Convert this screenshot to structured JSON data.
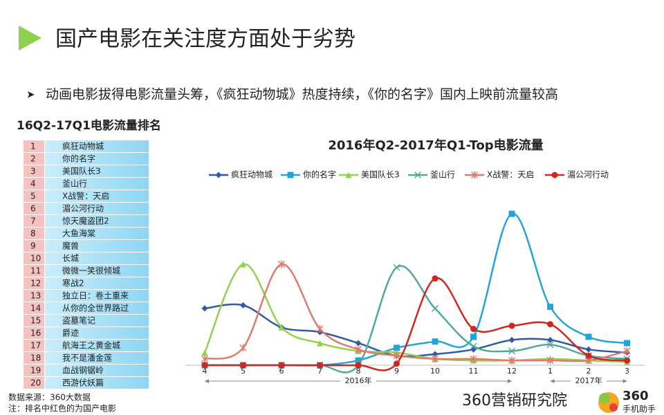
{
  "header": {
    "title": "国产电影在关注度方面处于劣势",
    "bullet": "动画电影拔得电影流量头筹，《疯狂动物城》热度持续，《你的名字》国内上映前流量较高"
  },
  "table": {
    "title": "16Q2-17Q1电影流量排名",
    "rows": [
      [
        1,
        "疯狂动物城",
        false
      ],
      [
        2,
        "你的名字",
        false
      ],
      [
        3,
        "美国队长3",
        false
      ],
      [
        4,
        "釜山行",
        false
      ],
      [
        5,
        "X战警：天启",
        false
      ],
      [
        6,
        "湄公河行动",
        true
      ],
      [
        7,
        "惊天魔盗团2",
        false
      ],
      [
        8,
        "大鱼海棠",
        true
      ],
      [
        9,
        "魔兽",
        false
      ],
      [
        10,
        "长城",
        true
      ],
      [
        11,
        "微微一笑很倾城",
        true
      ],
      [
        12,
        "寒战2",
        true
      ],
      [
        13,
        "独立日：卷土重来",
        false
      ],
      [
        14,
        "从你的全世界路过",
        true
      ],
      [
        15,
        "盗墓笔记",
        true
      ],
      [
        16,
        "爵迹",
        true
      ],
      [
        17,
        "航海王之黄金城",
        false
      ],
      [
        18,
        "我不是潘金莲",
        true
      ],
      [
        19,
        "血战钢锯岭",
        false
      ],
      [
        20,
        "西游伏妖篇",
        true
      ]
    ]
  },
  "footer": {
    "source": "数据来源：360大数据",
    "note": "注：排名中红色的为国产电影",
    "brand": "360营销研究院",
    "logo_number": "360",
    "logo_text": "手机助手"
  },
  "chart_data": {
    "type": "line",
    "title": "2016年Q2-2017年Q1-Top电影流量",
    "categories": [
      "4",
      "5",
      "6",
      "7",
      "8",
      "9",
      "10",
      "11",
      "12",
      "1",
      "2",
      "3"
    ],
    "groups": [
      {
        "label": "2016年",
        "from": 0,
        "to": 8
      },
      {
        "label": "2017年",
        "from": 9,
        "to": 11
      }
    ],
    "ylim": [
      0,
      100
    ],
    "smooth": true,
    "series": [
      {
        "name": "疯狂动物城",
        "color": "#2e5aa8",
        "marker": "diamond",
        "values": [
          36,
          38,
          24,
          21,
          14,
          6,
          7,
          10,
          16,
          16,
          10,
          8
        ]
      },
      {
        "name": "你的名字",
        "color": "#21a3dc",
        "marker": "square",
        "values": [
          0,
          0,
          0,
          0,
          3,
          11,
          15,
          18,
          96,
          37,
          18,
          14
        ]
      },
      {
        "name": "美国队长3",
        "color": "#92d050",
        "marker": "triangle",
        "values": [
          8,
          64,
          24,
          14,
          9,
          8,
          4,
          3,
          3,
          4,
          3,
          2
        ]
      },
      {
        "name": "釜山行",
        "color": "#4fa89a",
        "marker": "x",
        "values": [
          0,
          0,
          0,
          0,
          0,
          62,
          36,
          12,
          9,
          13,
          6,
          4
        ]
      },
      {
        "name": "X战警：天启",
        "color": "#e07a6a",
        "marker": "star",
        "values": [
          4,
          11,
          64,
          23,
          10,
          6,
          4,
          4,
          3,
          3,
          3,
          9
        ]
      },
      {
        "name": "湄公河行动",
        "color": "#d0261d",
        "marker": "circle",
        "values": [
          0,
          0,
          0,
          0,
          0,
          1,
          55,
          23,
          25,
          26,
          6,
          3
        ]
      }
    ]
  }
}
